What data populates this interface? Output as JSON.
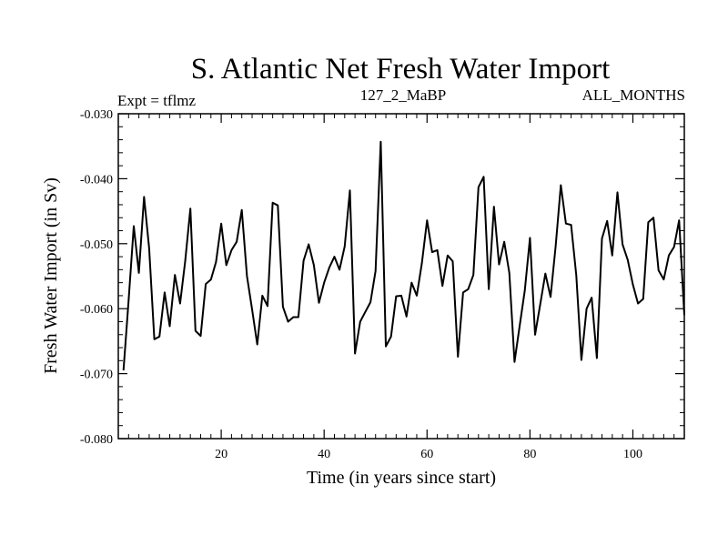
{
  "chart_data": {
    "type": "line",
    "title": "S. Atlantic Net Fresh Water Import",
    "subtitle_left": "Expt = tflmz",
    "subtitle_center": "127_2_MaBP",
    "subtitle_right": "ALL_MONTHS",
    "xlabel": "Time (in years since start)",
    "ylabel": "Fresh Water Import (in Sv)",
    "xlim": [
      0,
      110
    ],
    "ylim": [
      -0.08,
      -0.03
    ],
    "xticks": [
      20,
      40,
      60,
      80,
      100
    ],
    "xtick_labels": [
      "20",
      "40",
      "60",
      "80",
      "100"
    ],
    "yticks": [
      -0.08,
      -0.07,
      -0.06,
      -0.05,
      -0.04,
      -0.03
    ],
    "ytick_labels": [
      "-0.080",
      "-0.070",
      "-0.060",
      "-0.050",
      "-0.040",
      "-0.030"
    ],
    "series": [
      {
        "name": "net fresh water import",
        "color": "#000000",
        "x": [
          1,
          2,
          3,
          4,
          5,
          6,
          7,
          8,
          9,
          10,
          11,
          12,
          13,
          14,
          15,
          16,
          17,
          18,
          19,
          20,
          21,
          22,
          23,
          24,
          25,
          26,
          27,
          28,
          29,
          30,
          31,
          32,
          33,
          34,
          35,
          36,
          37,
          38,
          39,
          40,
          41,
          42,
          43,
          44,
          45,
          46,
          47,
          48,
          49,
          50,
          51,
          52,
          53,
          54,
          55,
          56,
          57,
          58,
          59,
          60,
          61,
          62,
          63,
          64,
          65,
          66,
          67,
          68,
          69,
          70,
          71,
          72,
          73,
          74,
          75,
          76,
          77,
          78,
          79,
          80,
          81,
          82,
          83,
          84,
          85,
          86,
          87,
          88,
          89,
          90,
          91,
          92,
          93,
          94,
          95,
          96,
          97,
          98,
          99,
          100,
          101,
          102,
          103,
          104,
          105,
          106,
          107,
          108,
          109,
          110
        ],
        "values": [
          -0.0695,
          -0.0588,
          -0.0473,
          -0.0545,
          -0.0428,
          -0.0507,
          -0.0647,
          -0.0643,
          -0.0575,
          -0.0627,
          -0.0548,
          -0.0592,
          -0.0527,
          -0.0446,
          -0.0634,
          -0.0642,
          -0.0562,
          -0.0555,
          -0.0528,
          -0.0469,
          -0.0533,
          -0.051,
          -0.0497,
          -0.0448,
          -0.055,
          -0.0601,
          -0.0655,
          -0.058,
          -0.0596,
          -0.0437,
          -0.0441,
          -0.0597,
          -0.062,
          -0.0613,
          -0.0613,
          -0.0526,
          -0.0501,
          -0.0533,
          -0.0591,
          -0.056,
          -0.0537,
          -0.052,
          -0.054,
          -0.0504,
          -0.0418,
          -0.0669,
          -0.062,
          -0.0605,
          -0.059,
          -0.0542,
          -0.0343,
          -0.0658,
          -0.0643,
          -0.0581,
          -0.058,
          -0.0612,
          -0.056,
          -0.058,
          -0.053,
          -0.0464,
          -0.0513,
          -0.051,
          -0.0565,
          -0.0518,
          -0.0527,
          -0.0674,
          -0.0575,
          -0.057,
          -0.0548,
          -0.0413,
          -0.0397,
          -0.057,
          -0.0443,
          -0.0532,
          -0.0497,
          -0.0545,
          -0.0682,
          -0.0626,
          -0.0572,
          -0.0491,
          -0.064,
          -0.0593,
          -0.0546,
          -0.0582,
          -0.0504,
          -0.041,
          -0.0469,
          -0.0471,
          -0.0549,
          -0.0679,
          -0.06,
          -0.0583,
          -0.0676,
          -0.0492,
          -0.0465,
          -0.0518,
          -0.0421,
          -0.0501,
          -0.0525,
          -0.0563,
          -0.0592,
          -0.0585,
          -0.0467,
          -0.046,
          -0.0541,
          -0.0555,
          -0.0518,
          -0.0505,
          -0.0464,
          -0.061
        ]
      }
    ]
  }
}
